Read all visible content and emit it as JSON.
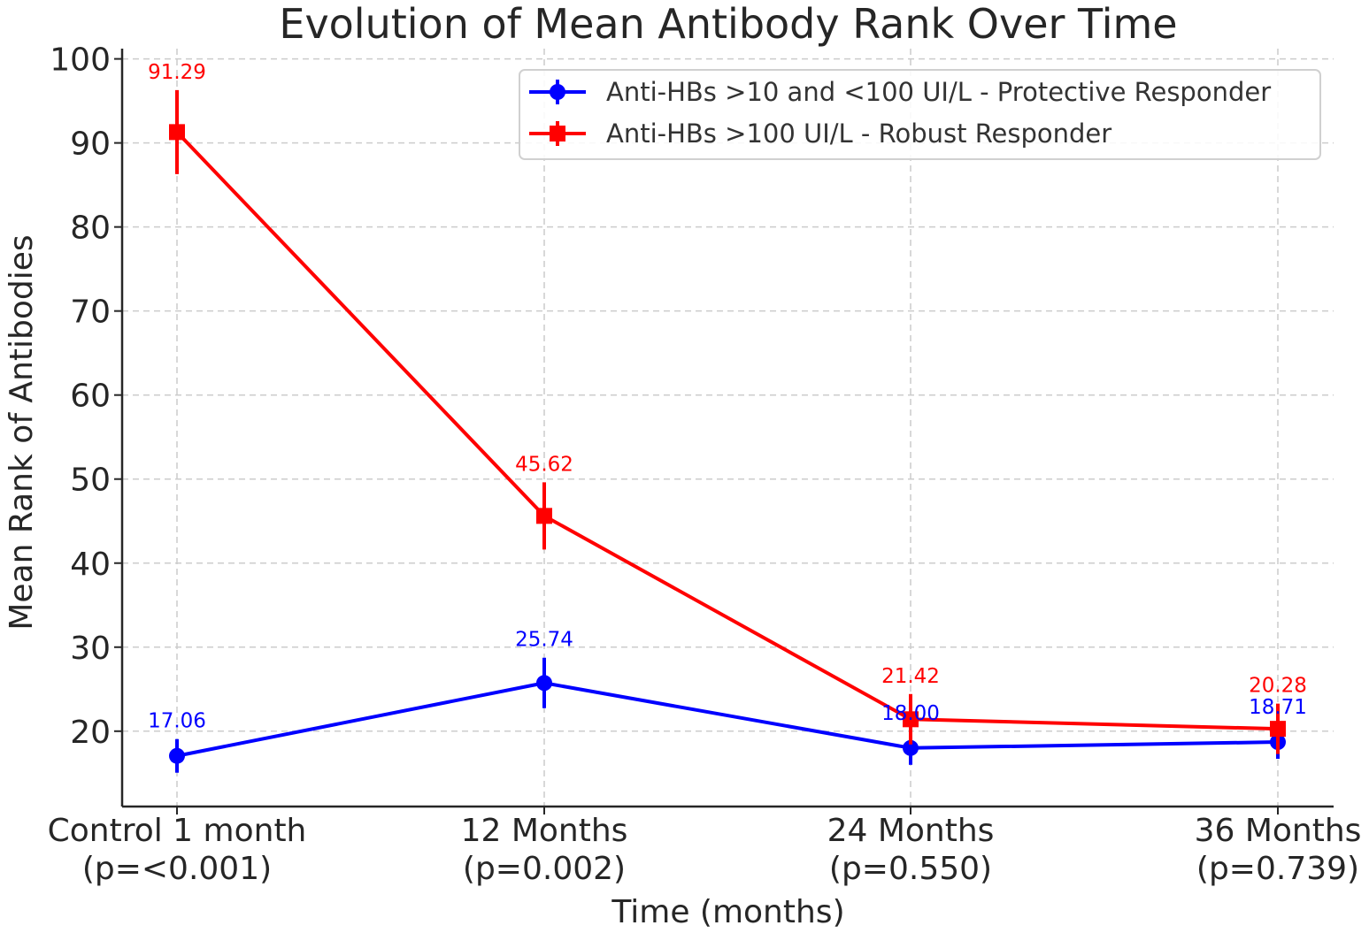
{
  "chart_data": {
    "type": "line",
    "title": "Evolution of Mean Antibody Rank Over Time",
    "xlabel": "Time (months)",
    "ylabel": "Mean Rank of Antibodies",
    "categories": [
      [
        "Control 1 month",
        "(p=<0.001)"
      ],
      [
        "12 Months",
        "(p=0.002)"
      ],
      [
        "24 Months",
        "(p=0.550)"
      ],
      [
        "36 Months",
        "(p=0.739)"
      ]
    ],
    "ylim": [
      11,
      100
    ],
    "yticks": [
      20,
      30,
      40,
      50,
      60,
      70,
      80,
      90,
      100
    ],
    "grid": true,
    "legend_position": "top-right",
    "series": [
      {
        "name": "Anti-HBs >10 and <100 UI/L - Protective Responder",
        "color": "#0000ff",
        "marker": "circle",
        "values": [
          17.06,
          25.74,
          18.0,
          18.71
        ],
        "labels": [
          "17.06",
          "25.74",
          "18.00",
          "18.71"
        ],
        "errors": [
          2.0,
          3.0,
          2.0,
          2.0
        ]
      },
      {
        "name": "Anti-HBs >100 UI/L - Robust Responder",
        "color": "#ff0000",
        "marker": "square",
        "values": [
          91.29,
          45.62,
          21.42,
          20.28
        ],
        "labels": [
          "91.29",
          "45.62",
          "21.42",
          "20.28"
        ],
        "errors": [
          5.0,
          4.0,
          3.0,
          3.0
        ]
      }
    ]
  }
}
